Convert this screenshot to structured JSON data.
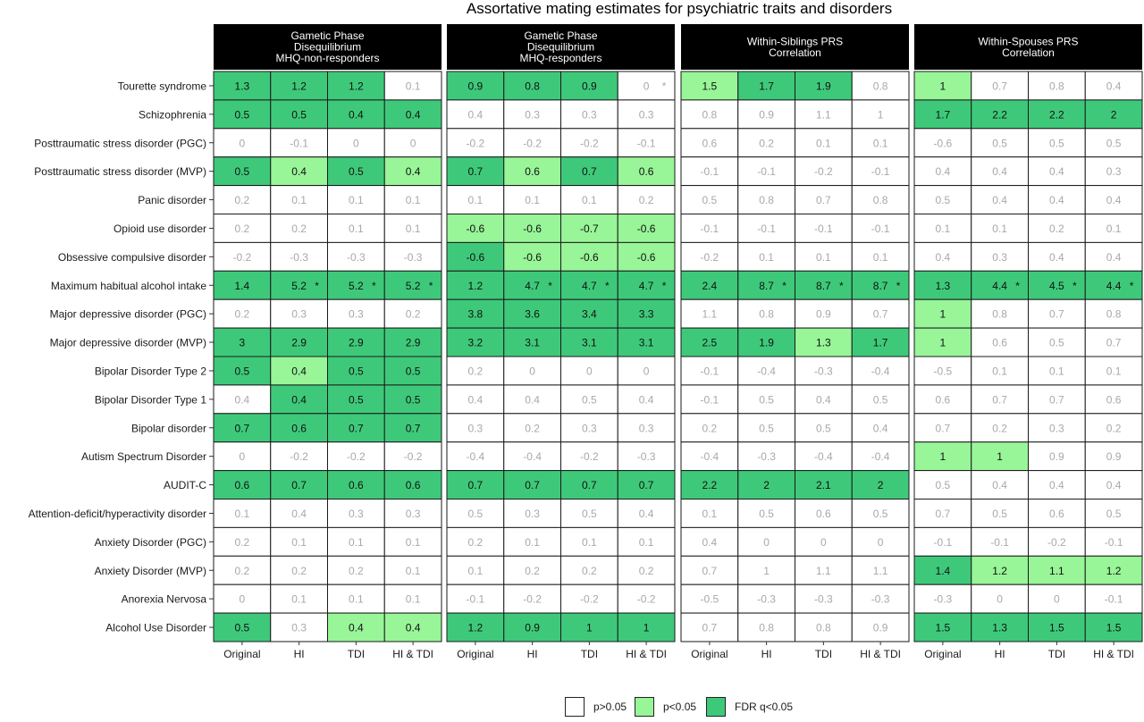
{
  "chart_data": {
    "type": "heatmap",
    "title": "Assortative mating estimates for psychiatric traits and disorders",
    "panels": [
      "Gametic Phase\nDisequilibrium\nMHQ-non-responders",
      "Gametic Phase\nDisequilibrium\nMHQ-responders",
      "Within-Siblings PRS\nCorrelation",
      "Within-Spouses PRS\nCorrelation"
    ],
    "columns": [
      "Original",
      "HI",
      "TDI",
      "HI & TDI"
    ],
    "rows": [
      "Tourette syndrome",
      "Schizophrenia",
      "Posttraumatic stress disorder (PGC)",
      "Posttraumatic stress disorder (MVP)",
      "Panic disorder",
      "Opioid use disorder",
      "Obsessive compulsive disorder",
      "Maximum habitual alcohol intake",
      "Major depressive disorder (PGC)",
      "Major depressive disorder (MVP)",
      "Bipolar Disorder Type 2",
      "Bipolar Disorder Type 1",
      "Bipolar disorder",
      "Autism Spectrum Disorder",
      "AUDIT-C",
      "Attention-deficit/hyperactivity disorder",
      "Anxiety Disorder (PGC)",
      "Anxiety Disorder (MVP)",
      "Anorexia Nervosa",
      "Alcohol Use Disorder"
    ],
    "values": [
      [
        [
          "1.3",
          "1.2",
          "1.2",
          "0.1"
        ],
        [
          "0.9",
          "0.8",
          "0.9",
          "0"
        ],
        [
          "1.5",
          "1.7",
          "1.9",
          "0.8"
        ],
        [
          "1",
          "0.7",
          "0.8",
          "0.4"
        ]
      ],
      [
        [
          "0.5",
          "0.5",
          "0.4",
          "0.4"
        ],
        [
          "0.4",
          "0.3",
          "0.3",
          "0.3"
        ],
        [
          "0.8",
          "0.9",
          "1.1",
          "1"
        ],
        [
          "1.7",
          "2.2",
          "2.2",
          "2"
        ]
      ],
      [
        [
          "0",
          "-0.1",
          "0",
          "0"
        ],
        [
          "-0.2",
          "-0.2",
          "-0.2",
          "-0.1"
        ],
        [
          "0.6",
          "0.2",
          "0.1",
          "0.1"
        ],
        [
          "-0.6",
          "0.5",
          "0.5",
          "0.5"
        ]
      ],
      [
        [
          "0.5",
          "0.4",
          "0.5",
          "0.4"
        ],
        [
          "0.7",
          "0.6",
          "0.7",
          "0.6"
        ],
        [
          "-0.1",
          "-0.1",
          "-0.2",
          "-0.1"
        ],
        [
          "0.4",
          "0.4",
          "0.4",
          "0.3"
        ]
      ],
      [
        [
          "0.2",
          "0.1",
          "0.1",
          "0.1"
        ],
        [
          "0.1",
          "0.1",
          "0.1",
          "0.2"
        ],
        [
          "0.5",
          "0.8",
          "0.7",
          "0.8"
        ],
        [
          "0.5",
          "0.4",
          "0.4",
          "0.4"
        ]
      ],
      [
        [
          "0.2",
          "0.2",
          "0.1",
          "0.1"
        ],
        [
          "-0.6",
          "-0.6",
          "-0.7",
          "-0.6"
        ],
        [
          "-0.1",
          "-0.1",
          "-0.1",
          "-0.1"
        ],
        [
          "0.1",
          "0.1",
          "0.2",
          "0.1"
        ]
      ],
      [
        [
          "-0.2",
          "-0.3",
          "-0.3",
          "-0.3"
        ],
        [
          "-0.6",
          "-0.6",
          "-0.6",
          "-0.6"
        ],
        [
          "-0.2",
          "0.1",
          "0.1",
          "0.1"
        ],
        [
          "0.4",
          "0.3",
          "0.4",
          "0.4"
        ]
      ],
      [
        [
          "1.4",
          "5.2",
          "5.2",
          "5.2"
        ],
        [
          "1.2",
          "4.7",
          "4.7",
          "4.7"
        ],
        [
          "2.4",
          "8.7",
          "8.7",
          "8.7"
        ],
        [
          "1.3",
          "4.4",
          "4.5",
          "4.4"
        ]
      ],
      [
        [
          "0.2",
          "0.3",
          "0.3",
          "0.2"
        ],
        [
          "3.8",
          "3.6",
          "3.4",
          "3.3"
        ],
        [
          "1.1",
          "0.8",
          "0.9",
          "0.7"
        ],
        [
          "1",
          "0.8",
          "0.7",
          "0.8"
        ]
      ],
      [
        [
          "3",
          "2.9",
          "2.9",
          "2.9"
        ],
        [
          "3.2",
          "3.1",
          "3.1",
          "3.1"
        ],
        [
          "2.5",
          "1.9",
          "1.3",
          "1.7"
        ],
        [
          "1",
          "0.6",
          "0.5",
          "0.7"
        ]
      ],
      [
        [
          "0.5",
          "0.4",
          "0.5",
          "0.5"
        ],
        [
          "0.2",
          "0",
          "0",
          "0"
        ],
        [
          "-0.1",
          "-0.4",
          "-0.3",
          "-0.4"
        ],
        [
          "-0.5",
          "0.1",
          "0.1",
          "0.1"
        ]
      ],
      [
        [
          "0.4",
          "0.4",
          "0.5",
          "0.5"
        ],
        [
          "0.4",
          "0.4",
          "0.5",
          "0.4"
        ],
        [
          "-0.1",
          "0.5",
          "0.4",
          "0.5"
        ],
        [
          "0.6",
          "0.7",
          "0.7",
          "0.6"
        ]
      ],
      [
        [
          "0.7",
          "0.6",
          "0.7",
          "0.7"
        ],
        [
          "0.3",
          "0.2",
          "0.3",
          "0.3"
        ],
        [
          "0.2",
          "0.5",
          "0.5",
          "0.4"
        ],
        [
          "0.7",
          "0.2",
          "0.3",
          "0.2"
        ]
      ],
      [
        [
          "0",
          "-0.2",
          "-0.2",
          "-0.2"
        ],
        [
          "-0.4",
          "-0.4",
          "-0.2",
          "-0.3"
        ],
        [
          "-0.4",
          "-0.3",
          "-0.4",
          "-0.4"
        ],
        [
          "1",
          "1",
          "0.9",
          "0.9"
        ]
      ],
      [
        [
          "0.6",
          "0.7",
          "0.6",
          "0.6"
        ],
        [
          "0.7",
          "0.7",
          "0.7",
          "0.7"
        ],
        [
          "2.2",
          "2",
          "2.1",
          "2"
        ],
        [
          "0.5",
          "0.4",
          "0.4",
          "0.4"
        ]
      ],
      [
        [
          "0.1",
          "0.4",
          "0.3",
          "0.3"
        ],
        [
          "0.5",
          "0.3",
          "0.5",
          "0.4"
        ],
        [
          "0.1",
          "0.5",
          "0.6",
          "0.5"
        ],
        [
          "0.7",
          "0.5",
          "0.6",
          "0.5"
        ]
      ],
      [
        [
          "0.2",
          "0.1",
          "0.1",
          "0.1"
        ],
        [
          "0.2",
          "0.1",
          "0.1",
          "0.1"
        ],
        [
          "0.4",
          "0",
          "0",
          "0"
        ],
        [
          "-0.1",
          "-0.1",
          "-0.2",
          "-0.1"
        ]
      ],
      [
        [
          "0.2",
          "0.2",
          "0.2",
          "0.1"
        ],
        [
          "0.1",
          "0.2",
          "0.2",
          "0.2"
        ],
        [
          "0.7",
          "1",
          "1.1",
          "1.1"
        ],
        [
          "1.4",
          "1.2",
          "1.1",
          "1.2"
        ]
      ],
      [
        [
          "0",
          "0.1",
          "0.1",
          "0.1"
        ],
        [
          "-0.1",
          "-0.2",
          "-0.2",
          "-0.2"
        ],
        [
          "-0.5",
          "-0.3",
          "-0.3",
          "-0.3"
        ],
        [
          "-0.3",
          "0",
          "0",
          "-0.1"
        ]
      ],
      [
        [
          "0.5",
          "0.3",
          "0.4",
          "0.4"
        ],
        [
          "1.2",
          "0.9",
          "1",
          "1"
        ],
        [
          "0.7",
          "0.8",
          "0.8",
          "0.9"
        ],
        [
          "1.5",
          "1.3",
          "1.5",
          "1.5"
        ]
      ]
    ],
    "significance": [
      [
        [
          "f",
          "f",
          "f",
          "n"
        ],
        [
          "f",
          "f",
          "f",
          "n"
        ],
        [
          "p",
          "f",
          "f",
          "n"
        ],
        [
          "p",
          "n",
          "n",
          "n"
        ]
      ],
      [
        [
          "f",
          "f",
          "f",
          "f"
        ],
        [
          "n",
          "n",
          "n",
          "n"
        ],
        [
          "n",
          "n",
          "n",
          "n"
        ],
        [
          "f",
          "f",
          "f",
          "f"
        ]
      ],
      [
        [
          "n",
          "n",
          "n",
          "n"
        ],
        [
          "n",
          "n",
          "n",
          "n"
        ],
        [
          "n",
          "n",
          "n",
          "n"
        ],
        [
          "n",
          "n",
          "n",
          "n"
        ]
      ],
      [
        [
          "f",
          "p",
          "f",
          "p"
        ],
        [
          "f",
          "p",
          "f",
          "p"
        ],
        [
          "n",
          "n",
          "n",
          "n"
        ],
        [
          "n",
          "n",
          "n",
          "n"
        ]
      ],
      [
        [
          "n",
          "n",
          "n",
          "n"
        ],
        [
          "n",
          "n",
          "n",
          "n"
        ],
        [
          "n",
          "n",
          "n",
          "n"
        ],
        [
          "n",
          "n",
          "n",
          "n"
        ]
      ],
      [
        [
          "n",
          "n",
          "n",
          "n"
        ],
        [
          "p",
          "p",
          "p",
          "p"
        ],
        [
          "n",
          "n",
          "n",
          "n"
        ],
        [
          "n",
          "n",
          "n",
          "n"
        ]
      ],
      [
        [
          "n",
          "n",
          "n",
          "n"
        ],
        [
          "f",
          "p",
          "p",
          "p"
        ],
        [
          "n",
          "n",
          "n",
          "n"
        ],
        [
          "n",
          "n",
          "n",
          "n"
        ]
      ],
      [
        [
          "f",
          "f",
          "f",
          "f"
        ],
        [
          "f",
          "f",
          "f",
          "f"
        ],
        [
          "f",
          "f",
          "f",
          "f"
        ],
        [
          "f",
          "f",
          "f",
          "f"
        ]
      ],
      [
        [
          "n",
          "n",
          "n",
          "n"
        ],
        [
          "f",
          "f",
          "f",
          "f"
        ],
        [
          "n",
          "n",
          "n",
          "n"
        ],
        [
          "p",
          "n",
          "n",
          "n"
        ]
      ],
      [
        [
          "f",
          "f",
          "f",
          "f"
        ],
        [
          "f",
          "f",
          "f",
          "f"
        ],
        [
          "f",
          "f",
          "p",
          "f"
        ],
        [
          "p",
          "n",
          "n",
          "n"
        ]
      ],
      [
        [
          "f",
          "p",
          "f",
          "f"
        ],
        [
          "n",
          "n",
          "n",
          "n"
        ],
        [
          "n",
          "n",
          "n",
          "n"
        ],
        [
          "n",
          "n",
          "n",
          "n"
        ]
      ],
      [
        [
          "n",
          "f",
          "f",
          "f"
        ],
        [
          "n",
          "n",
          "n",
          "n"
        ],
        [
          "n",
          "n",
          "n",
          "n"
        ],
        [
          "n",
          "n",
          "n",
          "n"
        ]
      ],
      [
        [
          "f",
          "f",
          "f",
          "f"
        ],
        [
          "n",
          "n",
          "n",
          "n"
        ],
        [
          "n",
          "n",
          "n",
          "n"
        ],
        [
          "n",
          "n",
          "n",
          "n"
        ]
      ],
      [
        [
          "n",
          "n",
          "n",
          "n"
        ],
        [
          "n",
          "n",
          "n",
          "n"
        ],
        [
          "n",
          "n",
          "n",
          "n"
        ],
        [
          "p",
          "p",
          "n",
          "n"
        ]
      ],
      [
        [
          "f",
          "f",
          "f",
          "f"
        ],
        [
          "f",
          "f",
          "f",
          "f"
        ],
        [
          "f",
          "f",
          "f",
          "f"
        ],
        [
          "n",
          "n",
          "n",
          "n"
        ]
      ],
      [
        [
          "n",
          "n",
          "n",
          "n"
        ],
        [
          "n",
          "n",
          "n",
          "n"
        ],
        [
          "n",
          "n",
          "n",
          "n"
        ],
        [
          "n",
          "n",
          "n",
          "n"
        ]
      ],
      [
        [
          "n",
          "n",
          "n",
          "n"
        ],
        [
          "n",
          "n",
          "n",
          "n"
        ],
        [
          "n",
          "n",
          "n",
          "n"
        ],
        [
          "n",
          "n",
          "n",
          "n"
        ]
      ],
      [
        [
          "n",
          "n",
          "n",
          "n"
        ],
        [
          "n",
          "n",
          "n",
          "n"
        ],
        [
          "n",
          "n",
          "n",
          "n"
        ],
        [
          "f",
          "p",
          "p",
          "p"
        ]
      ],
      [
        [
          "n",
          "n",
          "n",
          "n"
        ],
        [
          "n",
          "n",
          "n",
          "n"
        ],
        [
          "n",
          "n",
          "n",
          "n"
        ],
        [
          "n",
          "n",
          "n",
          "n"
        ]
      ],
      [
        [
          "f",
          "n",
          "p",
          "p"
        ],
        [
          "f",
          "f",
          "f",
          "f"
        ],
        [
          "n",
          "n",
          "n",
          "n"
        ],
        [
          "f",
          "f",
          "f",
          "f"
        ]
      ]
    ],
    "starred": [
      [
        0,
        1,
        3
      ],
      [
        7,
        0,
        1
      ],
      [
        7,
        0,
        2
      ],
      [
        7,
        0,
        3
      ],
      [
        7,
        1,
        1
      ],
      [
        7,
        1,
        2
      ],
      [
        7,
        1,
        3
      ],
      [
        7,
        2,
        1
      ],
      [
        7,
        2,
        2
      ],
      [
        7,
        2,
        3
      ],
      [
        7,
        3,
        1
      ],
      [
        7,
        3,
        2
      ],
      [
        7,
        3,
        3
      ]
    ],
    "legend": {
      "position": "bottom",
      "items": [
        {
          "key": "n",
          "label": "p>0.05",
          "color": "#ffffff"
        },
        {
          "key": "p",
          "label": "p<0.05",
          "color": "#98f598"
        },
        {
          "key": "f",
          "label": "FDR q<0.05",
          "color": "#3ec97a"
        }
      ]
    }
  }
}
